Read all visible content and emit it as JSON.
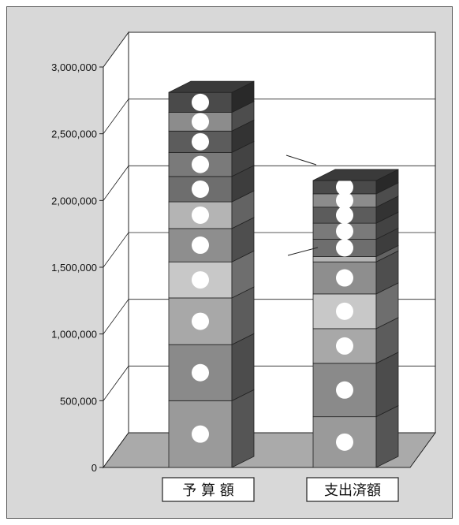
{
  "chart_data": {
    "type": "bar",
    "stacked": true,
    "three_d": true,
    "grid": true,
    "categories": [
      "予 算 額",
      "支出済額"
    ],
    "ylim": [
      0,
      3000000
    ],
    "yticks": [
      "0",
      "500,000",
      "1,000,000",
      "1,500,000",
      "2,000,000",
      "2,500,000",
      "3,000,000"
    ],
    "series": [
      {
        "values": [
          500000,
          380000
        ],
        "color": "#9a9a9a"
      },
      {
        "values": [
          420000,
          400000
        ],
        "color": "#8a8a8a"
      },
      {
        "values": [
          350000,
          260000
        ],
        "color": "#a8a8a8"
      },
      {
        "values": [
          270000,
          260000
        ],
        "color": "#c8c8c8"
      },
      {
        "values": [
          250000,
          240000
        ],
        "color": "#8e8e8e"
      },
      {
        "values": [
          200000,
          40000
        ],
        "color": "#b4b4b4"
      },
      {
        "values": [
          190000,
          130000
        ],
        "color": "#6e6e6e"
      },
      {
        "values": [
          180000,
          120000
        ],
        "color": "#7a7a7a"
      },
      {
        "values": [
          160000,
          120000
        ],
        "color": "#5c5c5c"
      },
      {
        "values": [
          140000,
          100000
        ],
        "color": "#8c8c8c"
      },
      {
        "values": [
          150000,
          100000
        ],
        "color": "#4a4a4a"
      }
    ],
    "colors": {
      "background": "#d8d8d8",
      "plot_wall": "#ffffff",
      "floor": "#aaaaaa",
      "marker": "#ffffff",
      "line": "#222222"
    }
  }
}
